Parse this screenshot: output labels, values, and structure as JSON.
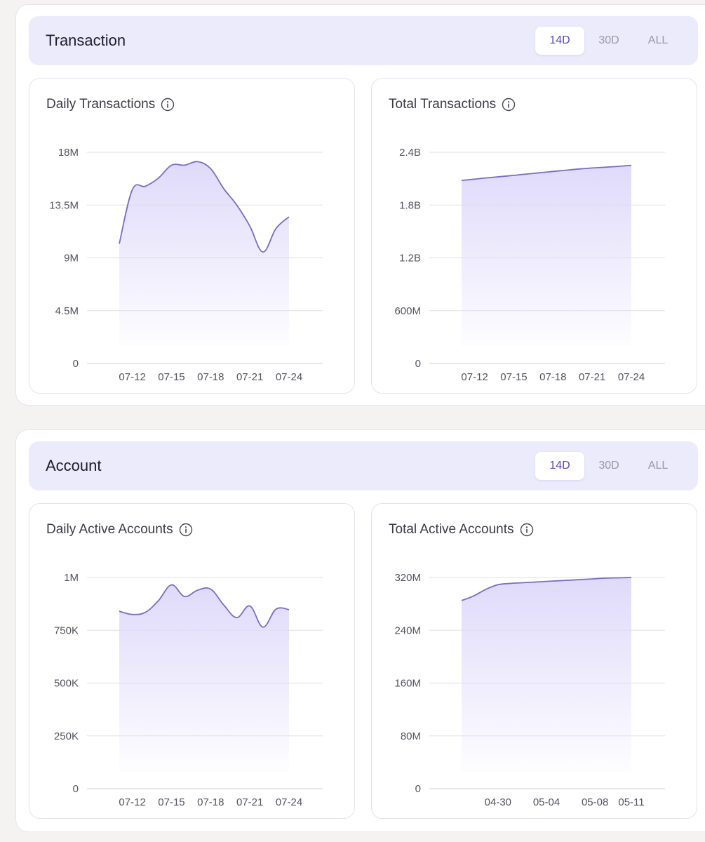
{
  "colors": {
    "accent": "#5b46b8",
    "line": "#7b6cc6",
    "area_top": "#ded8fa",
    "header_bg": "#ecebfb"
  },
  "sections": [
    {
      "title": "Transaction",
      "tabs": [
        "14D",
        "30D",
        "ALL"
      ],
      "active_tab": "14D",
      "cards": [
        {
          "title": "Daily Transactions",
          "icon": "info-icon",
          "chart_data": {
            "type": "area",
            "title": "Daily Transactions",
            "x_ticks": [
              "07-12",
              "07-15",
              "07-18",
              "07-21",
              "07-24"
            ],
            "y_ticks": [
              "0",
              "4.5M",
              "9M",
              "13.5M",
              "18M"
            ],
            "ylim": [
              0,
              18000000
            ],
            "x": [
              "07-11",
              "07-12",
              "07-13",
              "07-14",
              "07-15",
              "07-16",
              "07-17",
              "07-18",
              "07-19",
              "07-20",
              "07-21",
              "07-22",
              "07-23",
              "07-24"
            ],
            "values": [
              10200000,
              14800000,
              15100000,
              15800000,
              16900000,
              16900000,
              17200000,
              16600000,
              14900000,
              13500000,
              11700000,
              9500000,
              11500000,
              12500000
            ]
          }
        },
        {
          "title": "Total Transactions",
          "icon": "info-icon",
          "chart_data": {
            "type": "area",
            "title": "Total Transactions",
            "x_ticks": [
              "07-12",
              "07-15",
              "07-18",
              "07-21",
              "07-24"
            ],
            "y_ticks": [
              "0",
              "600M",
              "1.2B",
              "1.8B",
              "2.4B"
            ],
            "ylim": [
              0,
              2400000000
            ],
            "x": [
              "07-11",
              "07-12",
              "07-13",
              "07-14",
              "07-15",
              "07-16",
              "07-17",
              "07-18",
              "07-19",
              "07-20",
              "07-21",
              "07-22",
              "07-23",
              "07-24"
            ],
            "values": [
              2080000000,
              2095000000,
              2110000000,
              2123000000,
              2138000000,
              2153000000,
              2167000000,
              2182000000,
              2196000000,
              2210000000,
              2221000000,
              2230000000,
              2240000000,
              2252000000
            ]
          }
        }
      ]
    },
    {
      "title": "Account",
      "tabs": [
        "14D",
        "30D",
        "ALL"
      ],
      "active_tab": "14D",
      "cards": [
        {
          "title": "Daily Active Accounts",
          "icon": "info-icon",
          "chart_data": {
            "type": "area",
            "title": "Daily Active Accounts",
            "x_ticks": [
              "07-12",
              "07-15",
              "07-18",
              "07-21",
              "07-24"
            ],
            "y_ticks": [
              "0",
              "250K",
              "500K",
              "750K",
              "1M"
            ],
            "ylim": [
              0,
              1000000
            ],
            "x": [
              "07-11",
              "07-12",
              "07-13",
              "07-14",
              "07-15",
              "07-16",
              "07-17",
              "07-18",
              "07-19",
              "07-20",
              "07-21",
              "07-22",
              "07-23",
              "07-24"
            ],
            "values": [
              840000,
              825000,
              835000,
              890000,
              965000,
              910000,
              940000,
              945000,
              870000,
              810000,
              865000,
              765000,
              850000,
              848000
            ]
          }
        },
        {
          "title": "Total Active Accounts",
          "icon": "info-icon",
          "chart_data": {
            "type": "area",
            "title": "Total Active Accounts",
            "x_ticks": [
              "04-30",
              "05-04",
              "05-08",
              "05-11"
            ],
            "y_ticks": [
              "0",
              "80M",
              "160M",
              "240M",
              "320M"
            ],
            "ylim": [
              0,
              320000000
            ],
            "x": [
              "04-27",
              "04-28",
              "04-29",
              "04-30",
              "05-01",
              "05-02",
              "05-03",
              "05-04",
              "05-05",
              "05-06",
              "05-07",
              "05-08",
              "05-09",
              "05-10",
              "05-11"
            ],
            "values": [
              285000000,
              292000000,
              302000000,
              309000000,
              311000000,
              312000000,
              313000000,
              314000000,
              315000000,
              316000000,
              317000000,
              318000000,
              319000000,
              319500000,
              320000000
            ]
          }
        }
      ]
    }
  ]
}
